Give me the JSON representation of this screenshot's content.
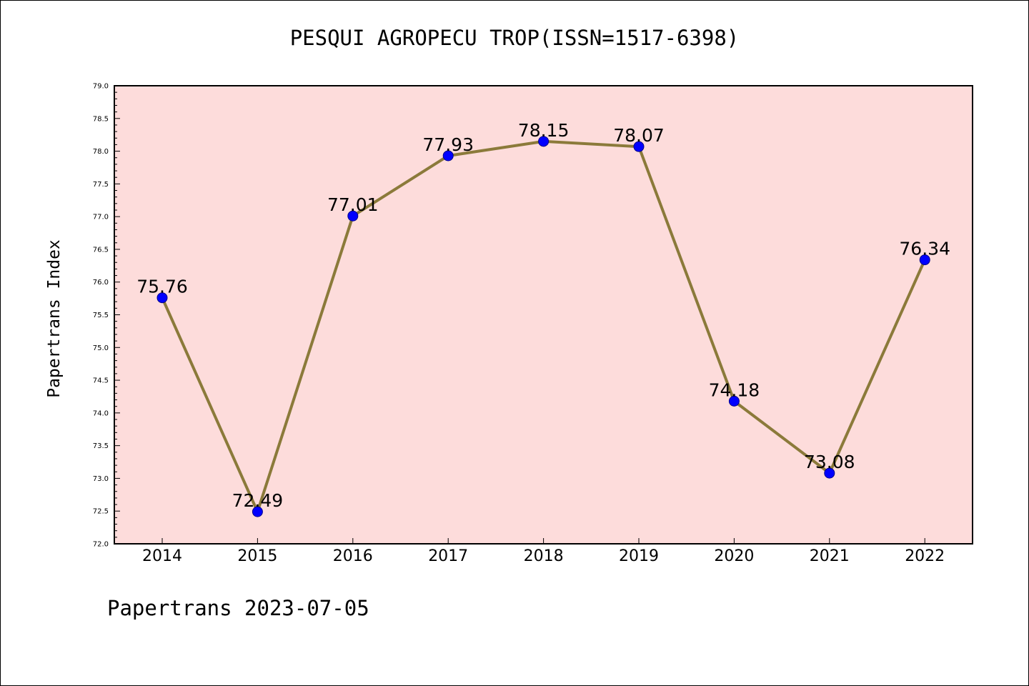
{
  "chart_data": {
    "type": "line",
    "title": "PESQUI AGROPECU TROP(ISSN=1517-6398)",
    "xlabel": "",
    "ylabel": "Papertrans Index",
    "categories": [
      "2014",
      "2015",
      "2016",
      "2017",
      "2018",
      "2019",
      "2020",
      "2021",
      "2022"
    ],
    "values": [
      75.76,
      72.49,
      77.01,
      77.93,
      78.15,
      78.07,
      74.18,
      73.08,
      76.34
    ],
    "data_labels": [
      "75.76",
      "72.49",
      "77.01",
      "77.93",
      "78.15",
      "78.07",
      "74.18",
      "73.08",
      "76.34"
    ],
    "ylim": [
      72.0,
      79.0
    ],
    "y_ticks": [
      "72.0",
      "72.5",
      "73.0",
      "73.5",
      "74.0",
      "74.5",
      "75.0",
      "75.5",
      "76.0",
      "76.5",
      "77.0",
      "77.5",
      "78.0",
      "78.5",
      "79.0"
    ],
    "grid": false,
    "line_color": "#8b7a3a",
    "marker_color": "#0000ff",
    "plot_background": "#fddcdb"
  },
  "footer": {
    "text": "Papertrans 2023-07-05"
  }
}
